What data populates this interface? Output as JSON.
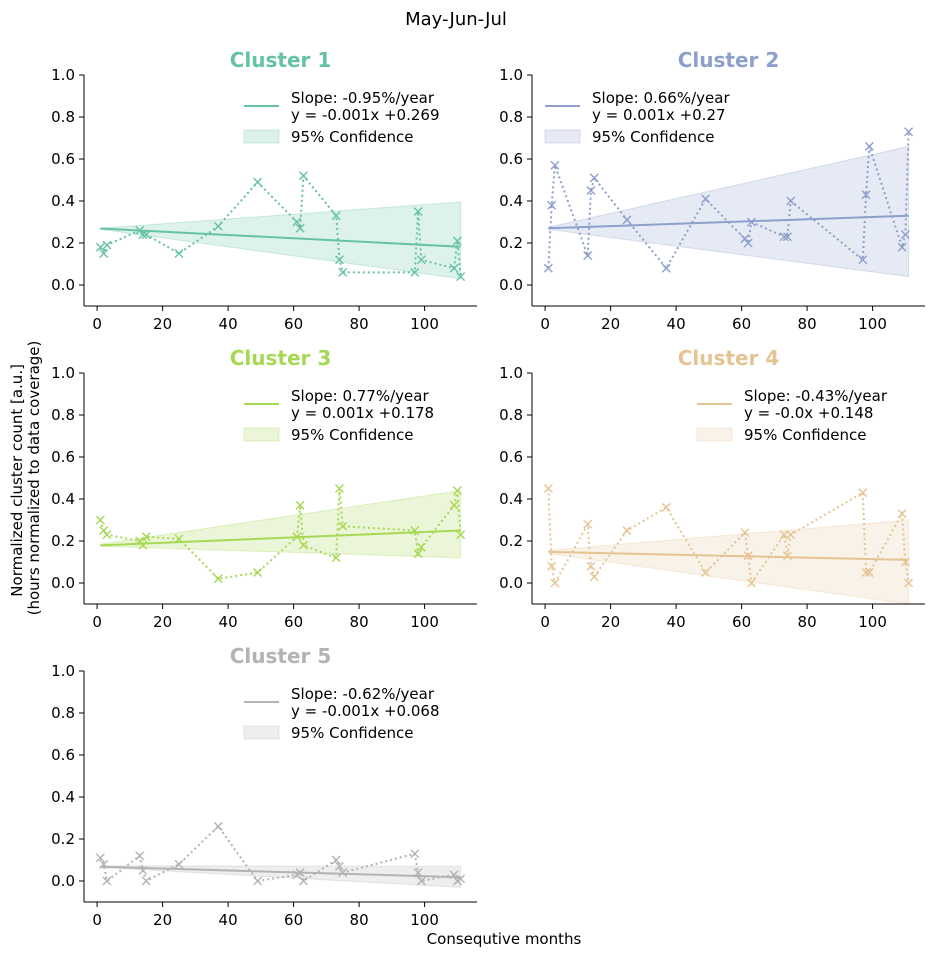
{
  "figure": {
    "suptitle": "May-Jun-Jul",
    "xlabel": "Consequtive months",
    "ylabel_line1": "Normalized cluster count [a.u.]",
    "ylabel_line2": "(hours normalized to data coverage)"
  },
  "chart_data": [
    {
      "type": "line",
      "title": "Cluster 1",
      "color": "#66c2a5",
      "xlim": [
        -4,
        116
      ],
      "ylim": [
        -0.1,
        1.0
      ],
      "xticks": [
        0,
        20,
        40,
        60,
        80,
        100
      ],
      "yticks": [
        "0.0",
        "0.2",
        "0.4",
        "0.6",
        "0.8",
        "1.0"
      ],
      "legend": {
        "location": "upper right",
        "trend": "Slope: -0.95%/year",
        "equation": " y = -0.001x +0.269",
        "band": "95% Confidence"
      },
      "trend": {
        "x0": 1,
        "y0": 0.269,
        "x1": 111,
        "y1": 0.182
      },
      "confidence": {
        "x0": 1,
        "lower0": 0.265,
        "upper0": 0.27,
        "x1": 111,
        "lower1": 0.03,
        "upper1": 0.395
      },
      "points": [
        [
          1,
          0.18
        ],
        [
          2,
          0.15
        ],
        [
          3,
          0.19
        ],
        [
          13,
          0.26
        ],
        [
          14,
          0.24
        ],
        [
          15,
          0.24
        ],
        [
          25,
          0.15
        ],
        [
          37,
          0.28
        ],
        [
          49,
          0.49
        ],
        [
          61,
          0.3
        ],
        [
          62,
          0.27
        ],
        [
          63,
          0.52
        ],
        [
          73,
          0.33
        ],
        [
          74,
          0.12
        ],
        [
          75,
          0.06
        ],
        [
          97,
          0.06
        ],
        [
          98,
          0.35
        ],
        [
          99,
          0.12
        ],
        [
          109,
          0.08
        ],
        [
          110,
          0.21
        ],
        [
          111,
          0.04
        ]
      ]
    },
    {
      "type": "line",
      "title": "Cluster 2",
      "color": "#8da0cb",
      "xlim": [
        -4,
        116
      ],
      "ylim": [
        -0.1,
        1.0
      ],
      "xticks": [
        0,
        20,
        40,
        60,
        80,
        100
      ],
      "yticks": [
        "0.0",
        "0.2",
        "0.4",
        "0.6",
        "0.8",
        "1.0"
      ],
      "legend": {
        "location": "upper left",
        "trend": "Slope: 0.66%/year",
        "equation": " y = 0.001x +0.27",
        "band": "95% Confidence"
      },
      "trend": {
        "x0": 1,
        "y0": 0.27,
        "x1": 111,
        "y1": 0.33
      },
      "confidence": {
        "x0": 1,
        "lower0": 0.265,
        "upper0": 0.275,
        "x1": 111,
        "lower1": 0.04,
        "upper1": 0.66
      },
      "points": [
        [
          1,
          0.08
        ],
        [
          2,
          0.38
        ],
        [
          3,
          0.57
        ],
        [
          13,
          0.14
        ],
        [
          14,
          0.45
        ],
        [
          15,
          0.51
        ],
        [
          25,
          0.31
        ],
        [
          37,
          0.08
        ],
        [
          49,
          0.41
        ],
        [
          61,
          0.22
        ],
        [
          62,
          0.2
        ],
        [
          63,
          0.3
        ],
        [
          73,
          0.23
        ],
        [
          74,
          0.23
        ],
        [
          75,
          0.4
        ],
        [
          97,
          0.12
        ],
        [
          98,
          0.43
        ],
        [
          99,
          0.66
        ],
        [
          109,
          0.18
        ],
        [
          110,
          0.24
        ],
        [
          111,
          0.73
        ]
      ]
    },
    {
      "type": "line",
      "title": "Cluster 3",
      "color": "#a6d854",
      "xlim": [
        -4,
        116
      ],
      "ylim": [
        -0.1,
        1.0
      ],
      "xticks": [
        0,
        20,
        40,
        60,
        80,
        100
      ],
      "yticks": [
        "0.0",
        "0.2",
        "0.4",
        "0.6",
        "0.8",
        "1.0"
      ],
      "legend": {
        "location": "upper right",
        "trend": "Slope: 0.77%/year",
        "equation": " y = 0.001x +0.178",
        "band": "95% Confidence"
      },
      "trend": {
        "x0": 1,
        "y0": 0.179,
        "x1": 111,
        "y1": 0.25
      },
      "confidence": {
        "x0": 1,
        "lower0": 0.175,
        "upper0": 0.185,
        "x1": 111,
        "lower1": 0.12,
        "upper1": 0.44
      },
      "points": [
        [
          1,
          0.3
        ],
        [
          2,
          0.25
        ],
        [
          3,
          0.23
        ],
        [
          13,
          0.2
        ],
        [
          14,
          0.18
        ],
        [
          15,
          0.22
        ],
        [
          25,
          0.21
        ],
        [
          37,
          0.02
        ],
        [
          49,
          0.05
        ],
        [
          61,
          0.22
        ],
        [
          62,
          0.37
        ],
        [
          63,
          0.18
        ],
        [
          73,
          0.12
        ],
        [
          74,
          0.45
        ],
        [
          75,
          0.27
        ],
        [
          97,
          0.25
        ],
        [
          98,
          0.14
        ],
        [
          99,
          0.17
        ],
        [
          109,
          0.37
        ],
        [
          110,
          0.44
        ],
        [
          111,
          0.23
        ]
      ]
    },
    {
      "type": "line",
      "title": "Cluster 4",
      "color": "#e5c494",
      "xlim": [
        -4,
        116
      ],
      "ylim": [
        -0.1,
        1.0
      ],
      "xticks": [
        0,
        20,
        40,
        60,
        80,
        100
      ],
      "yticks": [
        "0.0",
        "0.2",
        "0.4",
        "0.6",
        "0.8",
        "1.0"
      ],
      "legend": {
        "location": "upper right",
        "trend": "Slope: -0.43%/year",
        "equation": " y = -0.0x +0.148",
        "band": "95% Confidence"
      },
      "trend": {
        "x0": 1,
        "y0": 0.148,
        "x1": 111,
        "y1": 0.11
      },
      "confidence": {
        "x0": 1,
        "lower0": 0.14,
        "upper0": 0.155,
        "x1": 111,
        "lower1": -0.1,
        "upper1": 0.3
      },
      "points": [
        [
          1,
          0.45
        ],
        [
          2,
          0.08
        ],
        [
          3,
          0.0
        ],
        [
          13,
          0.28
        ],
        [
          14,
          0.08
        ],
        [
          15,
          0.03
        ],
        [
          25,
          0.25
        ],
        [
          37,
          0.36
        ],
        [
          49,
          0.05
        ],
        [
          61,
          0.24
        ],
        [
          62,
          0.13
        ],
        [
          63,
          0.0
        ],
        [
          73,
          0.23
        ],
        [
          74,
          0.13
        ],
        [
          75,
          0.23
        ],
        [
          97,
          0.43
        ],
        [
          98,
          0.05
        ],
        [
          99,
          0.05
        ],
        [
          109,
          0.33
        ],
        [
          110,
          0.1
        ],
        [
          111,
          0.0
        ]
      ]
    },
    {
      "type": "line",
      "title": "Cluster 5",
      "color": "#b3b3b3",
      "xlim": [
        -4,
        116
      ],
      "ylim": [
        -0.1,
        1.0
      ],
      "xticks": [
        0,
        20,
        40,
        60,
        80,
        100
      ],
      "yticks": [
        "0.0",
        "0.2",
        "0.4",
        "0.6",
        "0.8",
        "1.0"
      ],
      "legend": {
        "location": "upper right",
        "trend": "Slope: -0.62%/year",
        "equation": " y = -0.001x +0.068",
        "band": "95% Confidence"
      },
      "trend": {
        "x0": 1,
        "y0": 0.068,
        "x1": 111,
        "y1": 0.018
      },
      "confidence": {
        "x0": 1,
        "lower0": 0.065,
        "upper0": 0.072,
        "x1": 111,
        "lower1": -0.03,
        "upper1": 0.07
      },
      "points": [
        [
          1,
          0.11
        ],
        [
          2,
          0.08
        ],
        [
          3,
          0.0
        ],
        [
          13,
          0.12
        ],
        [
          14,
          0.05
        ],
        [
          15,
          0.0
        ],
        [
          25,
          0.08
        ],
        [
          37,
          0.26
        ],
        [
          49,
          0.0
        ],
        [
          61,
          0.03
        ],
        [
          62,
          0.04
        ],
        [
          63,
          0.0
        ],
        [
          73,
          0.1
        ],
        [
          74,
          0.07
        ],
        [
          75,
          0.04
        ],
        [
          97,
          0.13
        ],
        [
          98,
          0.04
        ],
        [
          99,
          0.0
        ],
        [
          109,
          0.03
        ],
        [
          110,
          0.0
        ],
        [
          111,
          0.01
        ]
      ]
    }
  ]
}
